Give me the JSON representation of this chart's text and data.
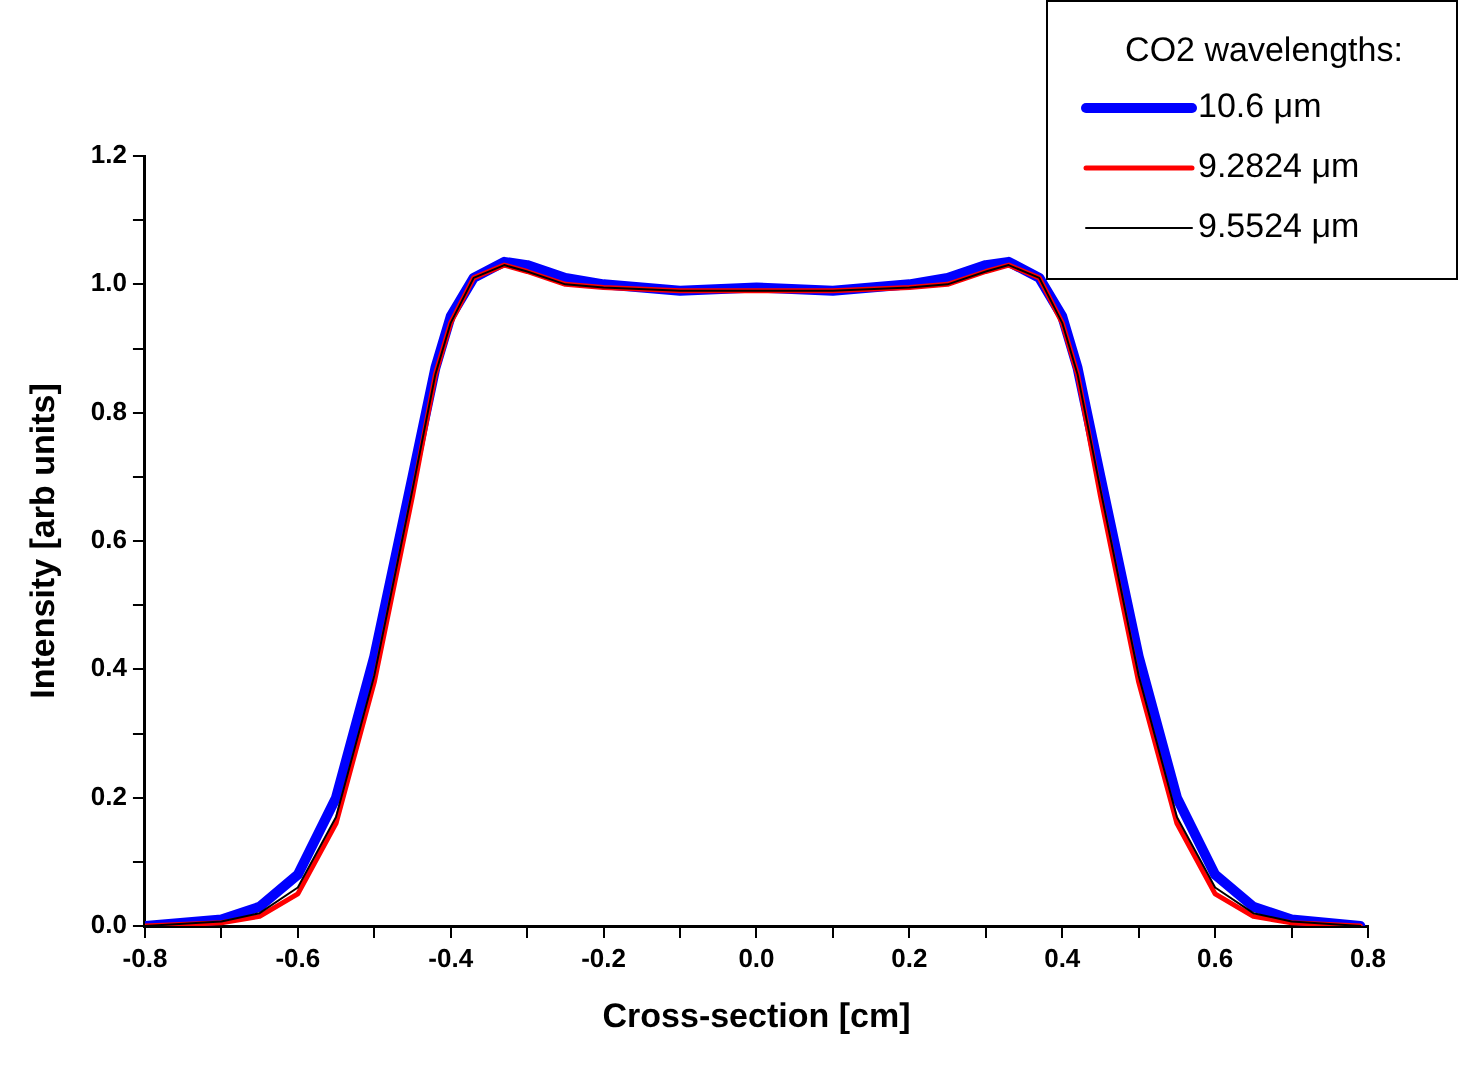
{
  "chart_data": {
    "type": "line",
    "xlabel": "Cross-section [cm]",
    "ylabel": "Intensity [arb units]",
    "legend_title": "CO2 wavelengths:",
    "legend": "top right",
    "grid": false,
    "marker": "none",
    "line_style": "solid",
    "xlim": [
      -0.8,
      0.8
    ],
    "ylim": [
      0,
      1.2
    ],
    "xticks": [
      -0.8,
      {
        "value": -0.7,
        "label": null
      },
      -0.6,
      {
        "value": -0.5,
        "label": null
      },
      -0.4,
      {
        "value": -0.3,
        "label": null
      },
      -0.2,
      {
        "value": -0.1,
        "label": null
      },
      {
        "value": 0,
        "label": "0.0"
      },
      {
        "value": 0.1,
        "label": null
      },
      0.2,
      {
        "value": 0.3,
        "label": null
      },
      0.4,
      {
        "value": 0.5,
        "label": null
      },
      0.6,
      {
        "value": 0.7,
        "label": null
      },
      0.8
    ],
    "yticks": [
      {
        "value": 0,
        "label": "0.0"
      },
      {
        "value": 0.1,
        "label": null
      },
      0.2,
      {
        "value": 0.3,
        "label": null
      },
      0.4,
      {
        "value": 0.5,
        "label": null
      },
      0.6,
      {
        "value": 0.7,
        "label": null
      },
      0.8,
      {
        "value": 0.9,
        "label": null
      },
      {
        "value": 1,
        "label": "1.0"
      },
      {
        "value": 1.1,
        "label": null
      },
      1.2
    ],
    "series": [
      {
        "name": "10.6 μm",
        "color": "#0000ff",
        "x": [
          -0.8,
          -0.7,
          -0.65,
          -0.6,
          -0.55,
          -0.5,
          -0.45,
          -0.42,
          -0.4,
          -0.37,
          -0.33,
          -0.3,
          -0.25,
          -0.2,
          -0.1,
          0,
          0.1,
          0.2,
          0.25,
          0.3,
          0.33,
          0.37,
          0.4,
          0.42,
          0.45,
          0.5,
          0.55,
          0.6,
          0.65,
          0.7,
          0.79
        ],
        "values": [
          0.0,
          0.01,
          0.03,
          0.08,
          0.2,
          0.42,
          0.7,
          0.87,
          0.95,
          1.01,
          1.035,
          1.03,
          1.01,
          1.0,
          0.99,
          0.995,
          0.99,
          1.0,
          1.01,
          1.03,
          1.035,
          1.01,
          0.95,
          0.87,
          0.7,
          0.42,
          0.2,
          0.08,
          0.03,
          0.01,
          0.0
        ]
      },
      {
        "name": "9.2824 μm",
        "color": "#ff0000",
        "x": [
          -0.8,
          -0.7,
          -0.65,
          -0.6,
          -0.55,
          -0.5,
          -0.45,
          -0.42,
          -0.4,
          -0.37,
          -0.33,
          -0.3,
          -0.25,
          -0.2,
          -0.1,
          0,
          0.1,
          0.2,
          0.25,
          0.3,
          0.33,
          0.37,
          0.4,
          0.42,
          0.45,
          0.5,
          0.55,
          0.6,
          0.65,
          0.7,
          0.79
        ],
        "values": [
          0.0,
          0.005,
          0.015,
          0.05,
          0.16,
          0.38,
          0.67,
          0.86,
          0.94,
          1.01,
          1.03,
          1.02,
          1.0,
          0.995,
          0.99,
          0.99,
          0.99,
          0.995,
          1.0,
          1.02,
          1.03,
          1.01,
          0.94,
          0.86,
          0.67,
          0.38,
          0.16,
          0.05,
          0.015,
          0.005,
          0.0
        ]
      },
      {
        "name": "9.5524 μm",
        "color": "#000000",
        "x": [
          -0.8,
          -0.7,
          -0.65,
          -0.6,
          -0.55,
          -0.5,
          -0.45,
          -0.42,
          -0.4,
          -0.37,
          -0.33,
          -0.3,
          -0.25,
          -0.2,
          -0.1,
          0,
          0.1,
          0.2,
          0.25,
          0.3,
          0.33,
          0.37,
          0.4,
          0.42,
          0.45,
          0.5,
          0.55,
          0.6,
          0.65,
          0.7,
          0.79
        ],
        "values": [
          0.0,
          0.007,
          0.02,
          0.06,
          0.17,
          0.39,
          0.68,
          0.86,
          0.94,
          1.01,
          1.03,
          1.02,
          1.0,
          0.995,
          0.99,
          0.99,
          0.99,
          0.995,
          1.0,
          1.02,
          1.03,
          1.01,
          0.94,
          0.86,
          0.68,
          0.39,
          0.17,
          0.06,
          0.02,
          0.007,
          0.0
        ]
      }
    ]
  }
}
